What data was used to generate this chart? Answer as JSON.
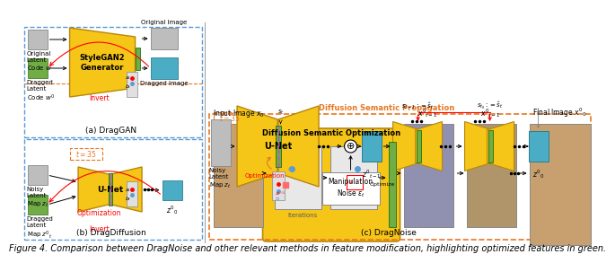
{
  "title": "Figure 4. Comparison between DragNoise and other relevant methods in feature modification, highlighting optimized features in green.",
  "caption_fontsize": 7.0,
  "background_color": "#ffffff",
  "fig_width": 6.4,
  "fig_height": 2.73,
  "panel_a_label": "(a) DragGAN",
  "panel_b_label": "(b) DragDiffusion",
  "panel_c_label": "(c) DragNoise",
  "yellow_color": "#F5C518",
  "yellow_bg": "#F5D060",
  "orange_color": "#E87722",
  "green_color": "#70AD47",
  "blue_box_color": "#5B9BD5",
  "light_blue": "#9DC3E6",
  "cyan_color": "#4BACC6",
  "red_color": "#FF0000",
  "dashed_blue": "#5B9BD5",
  "gray_color": "#808080",
  "dark_gray": "#595959"
}
